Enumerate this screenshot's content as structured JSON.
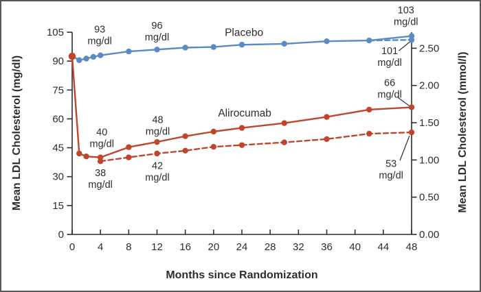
{
  "figure": {
    "background": "#ffffff",
    "border_color": "#58585a"
  },
  "chart_data": {
    "type": "line",
    "title": "",
    "xlabel": "Months since Randomization",
    "ylabel_left": "Mean LDL Cholesterol (mg/dl)",
    "ylabel_right": "Mean LDL Cholesterol (mmol/l)",
    "xlim": [
      0,
      48
    ],
    "ylim_left": [
      0,
      105
    ],
    "x_ticks": [
      0,
      4,
      8,
      12,
      16,
      20,
      24,
      28,
      32,
      36,
      40,
      44,
      48
    ],
    "y_ticks_left": [
      0,
      15,
      30,
      45,
      60,
      75,
      90,
      105
    ],
    "y_ticks_right": [
      {
        "label": "0.00",
        "value": 0.0
      },
      {
        "label": "0.50",
        "value": 0.5
      },
      {
        "label": "1.00",
        "value": 1.0
      },
      {
        "label": "1.50",
        "value": 1.5
      },
      {
        "label": "2.00",
        "value": 2.0
      },
      {
        "label": "2.50",
        "value": 2.5
      }
    ],
    "mmol_to_mgdl": 38.67,
    "grid": false,
    "legend_position": "inline-labels",
    "axis_color": "#2d2c2e",
    "text_color": "#2d2c2e",
    "series": [
      {
        "name": "placebo-solid",
        "display_name": "Placebo",
        "color": "#5b8ac6",
        "style": "solid",
        "markers": "all",
        "x": [
          0,
          1,
          2,
          3,
          4,
          8,
          12,
          16,
          20,
          24,
          30,
          36,
          42,
          48
        ],
        "y": [
          92.5,
          90.5,
          91.3,
          92.2,
          93,
          95,
          96,
          97,
          97.3,
          98.5,
          99,
          100.3,
          100.7,
          103
        ]
      },
      {
        "name": "placebo-dashed",
        "display_name": "Placebo (dashed)",
        "color": "#5b8ac6",
        "style": "dashed",
        "markers": "last",
        "x": [
          42,
          48
        ],
        "y": [
          100.7,
          101
        ]
      },
      {
        "name": "alirocumab-solid",
        "display_name": "Alirocumab",
        "color": "#c0452d",
        "style": "solid",
        "markers": "all",
        "big_first": true,
        "x": [
          0,
          1,
          2,
          4,
          8,
          12,
          16,
          20,
          24,
          30,
          36,
          42,
          48
        ],
        "y": [
          92.5,
          42,
          40.5,
          40,
          45.3,
          48,
          51,
          53.4,
          55.3,
          57.8,
          61,
          64.8,
          66
        ]
      },
      {
        "name": "alirocumab-dashed",
        "display_name": "Alirocumab (dashed)",
        "color": "#c0452d",
        "style": "dashed",
        "markers": "all",
        "x": [
          4,
          8,
          12,
          16,
          20,
          24,
          30,
          36,
          42,
          48
        ],
        "y": [
          38,
          40,
          42,
          43.5,
          45.5,
          46.4,
          47.8,
          49.5,
          52.3,
          53
        ]
      }
    ],
    "annotations": [
      {
        "lines": [
          "93",
          "mg/dl"
        ],
        "x": 3.9,
        "y": 103.5
      },
      {
        "lines": [
          "96",
          "mg/dl"
        ],
        "x": 12,
        "y": 105.5
      },
      {
        "lines": [
          "Placebo"
        ],
        "x": 24.3,
        "y": 104.8,
        "size": 15.5
      },
      {
        "lines": [
          "103",
          "mg/dl"
        ],
        "x": 47.2,
        "y": 113.5
      },
      {
        "lines": [
          "101",
          "mg/dl"
        ],
        "x": 44.9,
        "y": 92.3,
        "leader": [
          46.2,
          95.4,
          47.75,
          100
        ]
      },
      {
        "lines": [
          "66",
          "mg/dl"
        ],
        "x": 44.9,
        "y": 75.8,
        "leader": [
          46.05,
          71.2,
          47.65,
          66.8
        ]
      },
      {
        "lines": [
          "Alirocumab"
        ],
        "x": 24.4,
        "y": 63,
        "size": 15.5
      },
      {
        "lines": [
          "48",
          "mg/dl"
        ],
        "x": 12.1,
        "y": 56.6
      },
      {
        "lines": [
          "40",
          "mg/dl"
        ],
        "x": 4.2,
        "y": 50.2
      },
      {
        "lines": [
          "38",
          "mg/dl"
        ],
        "x": 4.0,
        "y": 29
      },
      {
        "lines": [
          "42",
          "mg/dl"
        ],
        "x": 12.05,
        "y": 32.7
      },
      {
        "lines": [
          "53",
          "mg/dl"
        ],
        "x": 45.1,
        "y": 33.8,
        "leader": [
          46.35,
          38.4,
          47.7,
          51.2
        ]
      }
    ]
  }
}
